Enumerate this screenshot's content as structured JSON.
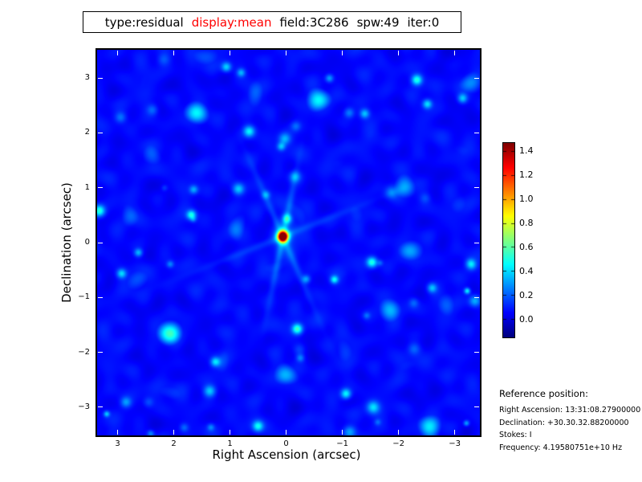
{
  "title_bar": {
    "segments": [
      {
        "text": "type:residual",
        "color": "#000000"
      },
      {
        "text": "display:mean",
        "color": "#ff0000"
      },
      {
        "text": "field:3C286",
        "color": "#000000"
      },
      {
        "text": "spw:49",
        "color": "#000000"
      },
      {
        "text": "iter:0",
        "color": "#000000"
      }
    ]
  },
  "plot": {
    "xlabel": "Right Ascension (arcsec)",
    "ylabel": "Declination (arcsec)",
    "x_tick_labels": [
      "3",
      "2",
      "1",
      "0",
      "−1",
      "−2",
      "−3"
    ],
    "y_tick_labels": [
      "3",
      "2",
      "1",
      "0",
      "−1",
      "−2",
      "−3"
    ],
    "tick_color": "#ffffff",
    "frame_color": "#000000"
  },
  "colorbar": {
    "tick_labels": [
      "1.4",
      "1.2",
      "1.0",
      "0.8",
      "0.6",
      "0.4",
      "0.2",
      "0.0"
    ],
    "vmin": -0.147,
    "vmax": 1.467,
    "colormap": "jet"
  },
  "reference": {
    "heading": "Reference position:",
    "lines": [
      "Right Ascension: 13:31:08.27900000",
      "Declination: +30.30.32.88200000",
      "Stokes: I",
      "Frequency: 4.19580751e+10 Hz"
    ]
  },
  "chart_data": {
    "type": "heatmap",
    "title": "type:residual display:mean field:3C286 spw:49 iter:0",
    "xlabel": "Right Ascension (arcsec)",
    "ylabel": "Declination (arcsec)",
    "xlim": [
      3.45,
      -3.45
    ],
    "ylim": [
      -3.51,
      3.51
    ],
    "x_ticks": [
      3,
      2,
      1,
      0,
      -1,
      -2,
      -3
    ],
    "y_ticks": [
      3,
      2,
      1,
      0,
      -1,
      -2,
      -3
    ],
    "colormap": "jet",
    "color_range": [
      -0.147,
      1.467
    ],
    "colorbar_ticks": [
      1.4,
      1.2,
      1.0,
      0.8,
      0.6,
      0.4,
      0.2,
      0.0
    ],
    "peak_source": {
      "ra_arcsec": 0.1,
      "dec_arcsec": 0.1,
      "value": 1.45
    },
    "background_level": 0.05,
    "grid": false,
    "legend_position": "none",
    "description": "Interferometric residual map: dark-blue background with web-like sidelobe ripple pattern, scattered cyan knots around 0.2-0.5, and one bright compact source near (0,0) peaking near 1.45 (red core, yellow/green/cyan halo with faint diagonal ray streaks)."
  }
}
